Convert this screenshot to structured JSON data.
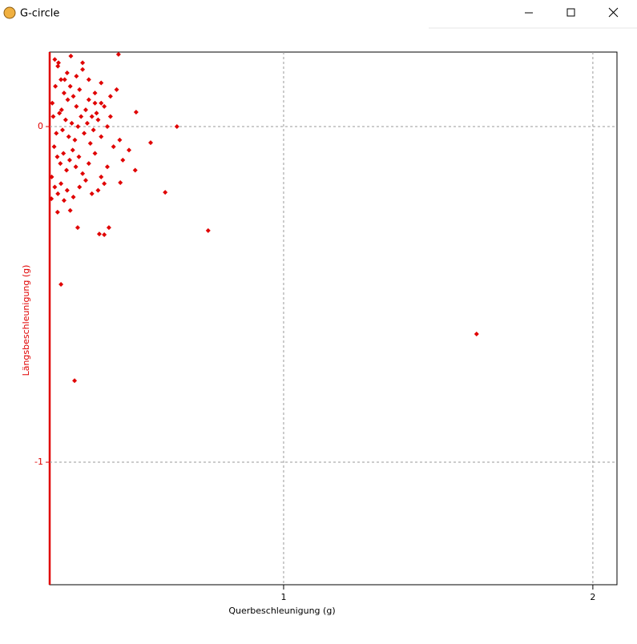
{
  "window": {
    "title": "G-circle"
  },
  "chart_data": {
    "type": "scatter",
    "x_label": "Querbeschleunigung (g)",
    "y_label": "Längsbeschleunigung (g)",
    "xlim": [
      0.2435,
      2.078
    ],
    "ylim": [
      -1.365,
      0.222
    ],
    "xticks": [
      1,
      2
    ],
    "yticks": [
      -1,
      0
    ],
    "grid": true,
    "color": "#e00000",
    "x": [
      0.655,
      0.617,
      0.756,
      1.624,
      0.28,
      0.324,
      0.404,
      0.42,
      0.435,
      0.334,
      0.466,
      0.523,
      0.57,
      0.472,
      0.269,
      0.249,
      0.26,
      0.27,
      0.28,
      0.29,
      0.3,
      0.31,
      0.32,
      0.33,
      0.34,
      0.35,
      0.36,
      0.37,
      0.38,
      0.39,
      0.4,
      0.41,
      0.42,
      0.44,
      0.46,
      0.255,
      0.265,
      0.275,
      0.285,
      0.295,
      0.305,
      0.315,
      0.325,
      0.335,
      0.345,
      0.355,
      0.365,
      0.375,
      0.385,
      0.395,
      0.41,
      0.43,
      0.45,
      0.258,
      0.268,
      0.278,
      0.288,
      0.298,
      0.308,
      0.318,
      0.328,
      0.338,
      0.35,
      0.37,
      0.39,
      0.41,
      0.43,
      0.47,
      0.5,
      0.25,
      0.26,
      0.27,
      0.28,
      0.29,
      0.3,
      0.31,
      0.32,
      0.34,
      0.36,
      0.38,
      0.4,
      0.42,
      0.48,
      0.52,
      0.252,
      0.262,
      0.272,
      0.282,
      0.292,
      0.302,
      0.312,
      0.33,
      0.35,
      0.37,
      0.39,
      0.41,
      0.44
    ],
    "y": [
      0,
      -0.196,
      -0.31,
      -0.618,
      -0.47,
      -0.757,
      -0.32,
      -0.322,
      -0.301,
      -0.301,
      0.215,
      0.043,
      -0.048,
      -0.167,
      -0.255,
      -0.215,
      0.2,
      0.18,
      0.14,
      0.1,
      0.16,
      0.12,
      0.09,
      0.06,
      0.11,
      0.17,
      0.05,
      0.08,
      0.03,
      0.07,
      0.02,
      0.13,
      0.06,
      0.09,
      0.11,
      0.03,
      -0.02,
      0.04,
      -0.01,
      0.02,
      -0.03,
      0.01,
      -0.04,
      0.0,
      0.03,
      -0.02,
      0.01,
      -0.05,
      -0.01,
      0.04,
      -0.03,
      0.0,
      -0.06,
      -0.06,
      -0.09,
      -0.11,
      -0.08,
      -0.13,
      -0.1,
      -0.07,
      -0.12,
      -0.09,
      -0.14,
      -0.11,
      -0.08,
      -0.15,
      -0.12,
      -0.04,
      -0.07,
      -0.15,
      -0.18,
      -0.2,
      -0.17,
      -0.22,
      -0.19,
      -0.25,
      -0.21,
      -0.18,
      -0.16,
      -0.2,
      -0.19,
      -0.17,
      -0.1,
      -0.13,
      0.07,
      0.12,
      0.19,
      0.05,
      0.14,
      0.08,
      0.21,
      0.15,
      0.19,
      0.14,
      0.1,
      0.07,
      0.03
    ]
  }
}
